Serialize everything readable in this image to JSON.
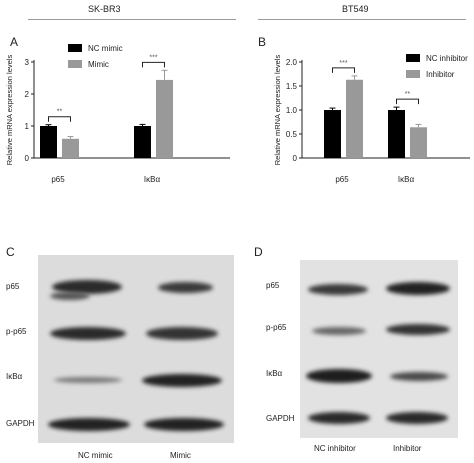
{
  "headers": {
    "left": "SK-BR3",
    "right": "BT549"
  },
  "panels": {
    "A": "A",
    "B": "B",
    "C": "C",
    "D": "D"
  },
  "colors": {
    "series1": "#000000",
    "series2": "#999999"
  },
  "chart_data": [
    {
      "type": "bar",
      "panel": "A",
      "categories": [
        "p65",
        "IκBα"
      ],
      "series": [
        {
          "name": "NC mimic",
          "values": [
            1.0,
            1.0
          ],
          "errors": [
            0.04,
            0.05
          ]
        },
        {
          "name": "Mimic",
          "values": [
            0.6,
            2.44
          ],
          "errors": [
            0.07,
            0.3
          ]
        }
      ],
      "ylabel": "Relative mRNA expression levels",
      "xlabel": "",
      "ylim": [
        0,
        3
      ],
      "yticks": [
        "0",
        "1",
        "2",
        "3"
      ],
      "significance": [
        "**",
        "***"
      ],
      "legend": "top-left"
    },
    {
      "type": "bar",
      "panel": "B",
      "categories": [
        "p65",
        "IκBα"
      ],
      "series": [
        {
          "name": "NC inhibitor",
          "values": [
            1.0,
            1.0
          ],
          "errors": [
            0.04,
            0.06
          ]
        },
        {
          "name": "Inhibitor",
          "values": [
            1.63,
            0.64
          ],
          "errors": [
            0.08,
            0.06
          ]
        }
      ],
      "ylabel": "Relative mRNA expression levels",
      "xlabel": "",
      "ylim": [
        0,
        2.0
      ],
      "yticks": [
        "0",
        "0.5",
        "1.0",
        "1.5",
        "2.0"
      ],
      "significance": [
        "***",
        "**"
      ],
      "legend": "top-right"
    }
  ],
  "blot_C": {
    "rows": [
      "p65",
      "p-p65",
      "IκBα",
      "GAPDH"
    ],
    "lanes": [
      "NC mimic",
      "Mimic"
    ]
  },
  "blot_D": {
    "rows": [
      "p65",
      "p-p65",
      "IκBα",
      "GAPDH"
    ],
    "lanes": [
      "NC inhibitor",
      "Inhibitor"
    ]
  }
}
